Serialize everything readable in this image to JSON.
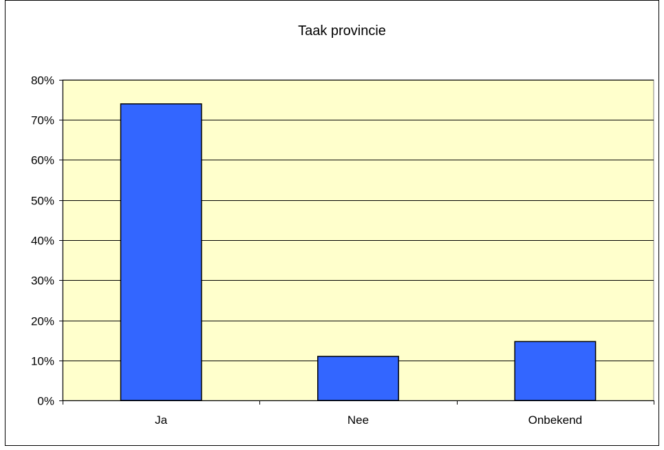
{
  "chart_data": {
    "type": "bar",
    "title": "Taak provincie",
    "categories": [
      "Ja",
      "Nee",
      "Onbekend"
    ],
    "values": [
      0.74,
      0.11,
      0.147
    ],
    "ylim": [
      0,
      0.8
    ],
    "yticks": [
      "0%",
      "10%",
      "20%",
      "30%",
      "40%",
      "50%",
      "60%",
      "70%",
      "80%"
    ],
    "tick_step": 0.1,
    "grid": true,
    "colors": {
      "bar": "#3366ff",
      "plot_bg": "#ffffcc",
      "axis": "#000000"
    }
  }
}
